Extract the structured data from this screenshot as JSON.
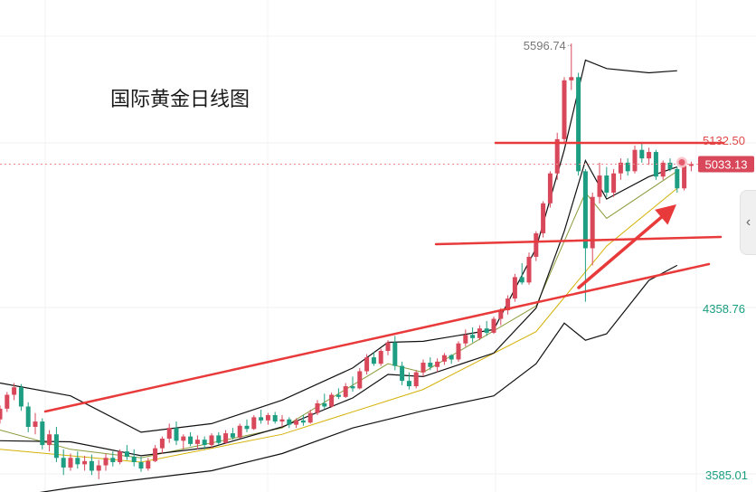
{
  "chart_data": {
    "type": "candlestick",
    "title": "国际黄金日线图",
    "y_axis": {
      "labels": [
        "5132.50",
        "4358.76",
        "3585.01"
      ],
      "range_min": 3585.01
    },
    "annotations": {
      "high_label": "5596.74",
      "resistance_label": "5132.50",
      "current_price": "5033.13"
    },
    "candles": [
      [
        3840,
        3905,
        3820,
        3890
      ],
      [
        3890,
        3968,
        3875,
        3955
      ],
      [
        3955,
        4010,
        3930,
        3990
      ],
      [
        3990,
        4005,
        3880,
        3900
      ],
      [
        3900,
        3920,
        3780,
        3805
      ],
      [
        3805,
        3870,
        3770,
        3830
      ],
      [
        3830,
        3845,
        3700,
        3720
      ],
      [
        3720,
        3790,
        3690,
        3770
      ],
      [
        3770,
        3805,
        3640,
        3660
      ],
      [
        3660,
        3700,
        3580,
        3615
      ],
      [
        3615,
        3680,
        3600,
        3660
      ],
      [
        3660,
        3690,
        3610,
        3630
      ],
      [
        3630,
        3670,
        3600,
        3645
      ],
      [
        3645,
        3675,
        3580,
        3600
      ],
      [
        3600,
        3650,
        3560,
        3625
      ],
      [
        3625,
        3680,
        3600,
        3660
      ],
      [
        3660,
        3690,
        3620,
        3640
      ],
      [
        3640,
        3700,
        3630,
        3690
      ],
      [
        3690,
        3720,
        3650,
        3665
      ],
      [
        3665,
        3700,
        3620,
        3640
      ],
      [
        3640,
        3665,
        3595,
        3610
      ],
      [
        3610,
        3660,
        3600,
        3645
      ],
      [
        3645,
        3720,
        3640,
        3705
      ],
      [
        3705,
        3760,
        3680,
        3750
      ],
      [
        3750,
        3820,
        3730,
        3800
      ],
      [
        3800,
        3830,
        3720,
        3740
      ],
      [
        3740,
        3770,
        3700,
        3760
      ],
      [
        3760,
        3780,
        3715,
        3725
      ],
      [
        3725,
        3765,
        3700,
        3745
      ],
      [
        3745,
        3760,
        3700,
        3720
      ],
      [
        3720,
        3775,
        3705,
        3765
      ],
      [
        3765,
        3780,
        3720,
        3730
      ],
      [
        3730,
        3790,
        3725,
        3775
      ],
      [
        3775,
        3800,
        3745,
        3755
      ],
      [
        3755,
        3820,
        3750,
        3810
      ],
      [
        3810,
        3840,
        3780,
        3795
      ],
      [
        3795,
        3860,
        3790,
        3850
      ],
      [
        3850,
        3885,
        3820,
        3835
      ],
      [
        3835,
        3870,
        3815,
        3860
      ],
      [
        3860,
        3875,
        3820,
        3830
      ],
      [
        3830,
        3860,
        3805,
        3840
      ],
      [
        3840,
        3850,
        3800,
        3815
      ],
      [
        3815,
        3845,
        3800,
        3835
      ],
      [
        3835,
        3860,
        3810,
        3825
      ],
      [
        3825,
        3885,
        3820,
        3870
      ],
      [
        3870,
        3930,
        3860,
        3915
      ],
      [
        3915,
        3960,
        3890,
        3900
      ],
      [
        3900,
        3965,
        3895,
        3955
      ],
      [
        3955,
        3985,
        3935,
        3945
      ],
      [
        3945,
        4010,
        3940,
        3995
      ],
      [
        3995,
        4040,
        3970,
        3985
      ],
      [
        3985,
        4080,
        3980,
        4065
      ],
      [
        4065,
        4145,
        4050,
        4130
      ],
      [
        4130,
        4155,
        4090,
        4100
      ],
      [
        4100,
        4170,
        4090,
        4160
      ],
      [
        4160,
        4210,
        4140,
        4200
      ],
      [
        4200,
        4230,
        4070,
        4090
      ],
      [
        4090,
        4110,
        4000,
        4020
      ],
      [
        4020,
        4060,
        3980,
        3995
      ],
      [
        3995,
        4070,
        3985,
        4060
      ],
      [
        4060,
        4120,
        4040,
        4105
      ],
      [
        4105,
        4130,
        4070,
        4085
      ],
      [
        4085,
        4125,
        4060,
        4110
      ],
      [
        4110,
        4150,
        4095,
        4140
      ],
      [
        4140,
        4145,
        4100,
        4120
      ],
      [
        4120,
        4205,
        4110,
        4195
      ],
      [
        4195,
        4260,
        4180,
        4235
      ],
      [
        4235,
        4270,
        4200,
        4220
      ],
      [
        4220,
        4280,
        4210,
        4265
      ],
      [
        4265,
        4300,
        4230,
        4245
      ],
      [
        4245,
        4320,
        4240,
        4310
      ],
      [
        4310,
        4360,
        4280,
        4350
      ],
      [
        4350,
        4420,
        4330,
        4405
      ],
      [
        4405,
        4520,
        4390,
        4505
      ],
      [
        4505,
        4570,
        4470,
        4480
      ],
      [
        4480,
        4620,
        4470,
        4600
      ],
      [
        4600,
        4720,
        4580,
        4710
      ],
      [
        4710,
        4860,
        4690,
        4850
      ],
      [
        4850,
        5000,
        4830,
        4990
      ],
      [
        4990,
        5180,
        4960,
        5150
      ],
      [
        5150,
        5440,
        5130,
        5425
      ],
      [
        5425,
        5596.74,
        5380,
        5440
      ],
      [
        5440,
        5460,
        4980,
        5000
      ],
      [
        5000,
        5010,
        4390,
        4640
      ],
      [
        4640,
        4900,
        4560,
        4880
      ],
      [
        4880,
        5040,
        4850,
        4980
      ],
      [
        4980,
        5020,
        4880,
        4900
      ],
      [
        4900,
        5010,
        4880,
        4990
      ],
      [
        4990,
        5060,
        4960,
        5040
      ],
      [
        5040,
        5060,
        4980,
        5000
      ],
      [
        5000,
        5120,
        4990,
        5100
      ],
      [
        5100,
        5130,
        5040,
        5060
      ],
      [
        5060,
        5110,
        5030,
        5090
      ],
      [
        5090,
        5100,
        4960,
        4975
      ],
      [
        4975,
        5050,
        4960,
        5040
      ],
      [
        5040,
        5060,
        5000,
        5010
      ],
      [
        5010,
        5020,
        4900,
        4920
      ],
      [
        4920,
        5040,
        4910,
        5025
      ],
      [
        5025,
        5045,
        5000,
        5033.13
      ]
    ],
    "bollinger": {
      "upper": [
        [
          0,
          4010
        ],
        [
          10,
          3950
        ],
        [
          20,
          3780
        ],
        [
          30,
          3820
        ],
        [
          40,
          3930
        ],
        [
          50,
          4080
        ],
        [
          55,
          4200
        ],
        [
          60,
          4205
        ],
        [
          70,
          4260
        ],
        [
          76,
          4640
        ],
        [
          80,
          5100
        ],
        [
          83,
          5520
        ],
        [
          86,
          5480
        ],
        [
          92,
          5460
        ],
        [
          96,
          5470
        ]
      ],
      "lower": [
        [
          0,
          3470
        ],
        [
          10,
          3520
        ],
        [
          20,
          3560
        ],
        [
          30,
          3600
        ],
        [
          40,
          3680
        ],
        [
          50,
          3800
        ],
        [
          60,
          3880
        ],
        [
          70,
          3950
        ],
        [
          76,
          4100
        ],
        [
          80,
          4290
        ],
        [
          83,
          4210
        ],
        [
          86,
          4240
        ],
        [
          92,
          4490
        ],
        [
          96,
          4560
        ]
      ],
      "middle": [
        [
          0,
          3740
        ],
        [
          10,
          3735
        ],
        [
          20,
          3670
        ],
        [
          30,
          3710
        ],
        [
          40,
          3805
        ],
        [
          50,
          3940
        ],
        [
          55,
          4050
        ],
        [
          60,
          4040
        ],
        [
          70,
          4150
        ],
        [
          76,
          4360
        ],
        [
          80,
          4720
        ],
        [
          83,
          5050
        ],
        [
          86,
          4870
        ],
        [
          92,
          4975
        ],
        [
          96,
          5020
        ]
      ]
    },
    "ma_lines": [
      {
        "color": "#d4b106",
        "points": [
          [
            0,
            3700
          ],
          [
            20,
            3640
          ],
          [
            40,
            3770
          ],
          [
            60,
            3980
          ],
          [
            76,
            4250
          ],
          [
            86,
            4650
          ],
          [
            96,
            4920
          ]
        ]
      },
      {
        "color": "#8a9a3a",
        "points": [
          [
            0,
            3790
          ],
          [
            10,
            3700
          ],
          [
            20,
            3660
          ],
          [
            40,
            3800
          ],
          [
            55,
            4100
          ],
          [
            60,
            4060
          ],
          [
            76,
            4370
          ],
          [
            83,
            4900
          ],
          [
            86,
            4780
          ],
          [
            96,
            5000
          ]
        ]
      }
    ],
    "overlays": {
      "resistance_line": [
        [
          548,
          158
        ],
        [
          800,
          158
        ]
      ],
      "support_line": [
        [
          482,
          270
        ],
        [
          797,
          262
        ]
      ],
      "trend_line": [
        [
          50,
          455
        ],
        [
          784,
          292
        ]
      ],
      "arrow": [
        [
          640,
          318
        ],
        [
          748,
          226
        ]
      ]
    },
    "colors": {
      "up": "#d9485a",
      "down": "#1d9e83",
      "annotation": "#e83a3a",
      "bollinger": "#111111",
      "axis_text_down": "#1a9e80",
      "axis_text_up": "#e04a4a"
    }
  }
}
